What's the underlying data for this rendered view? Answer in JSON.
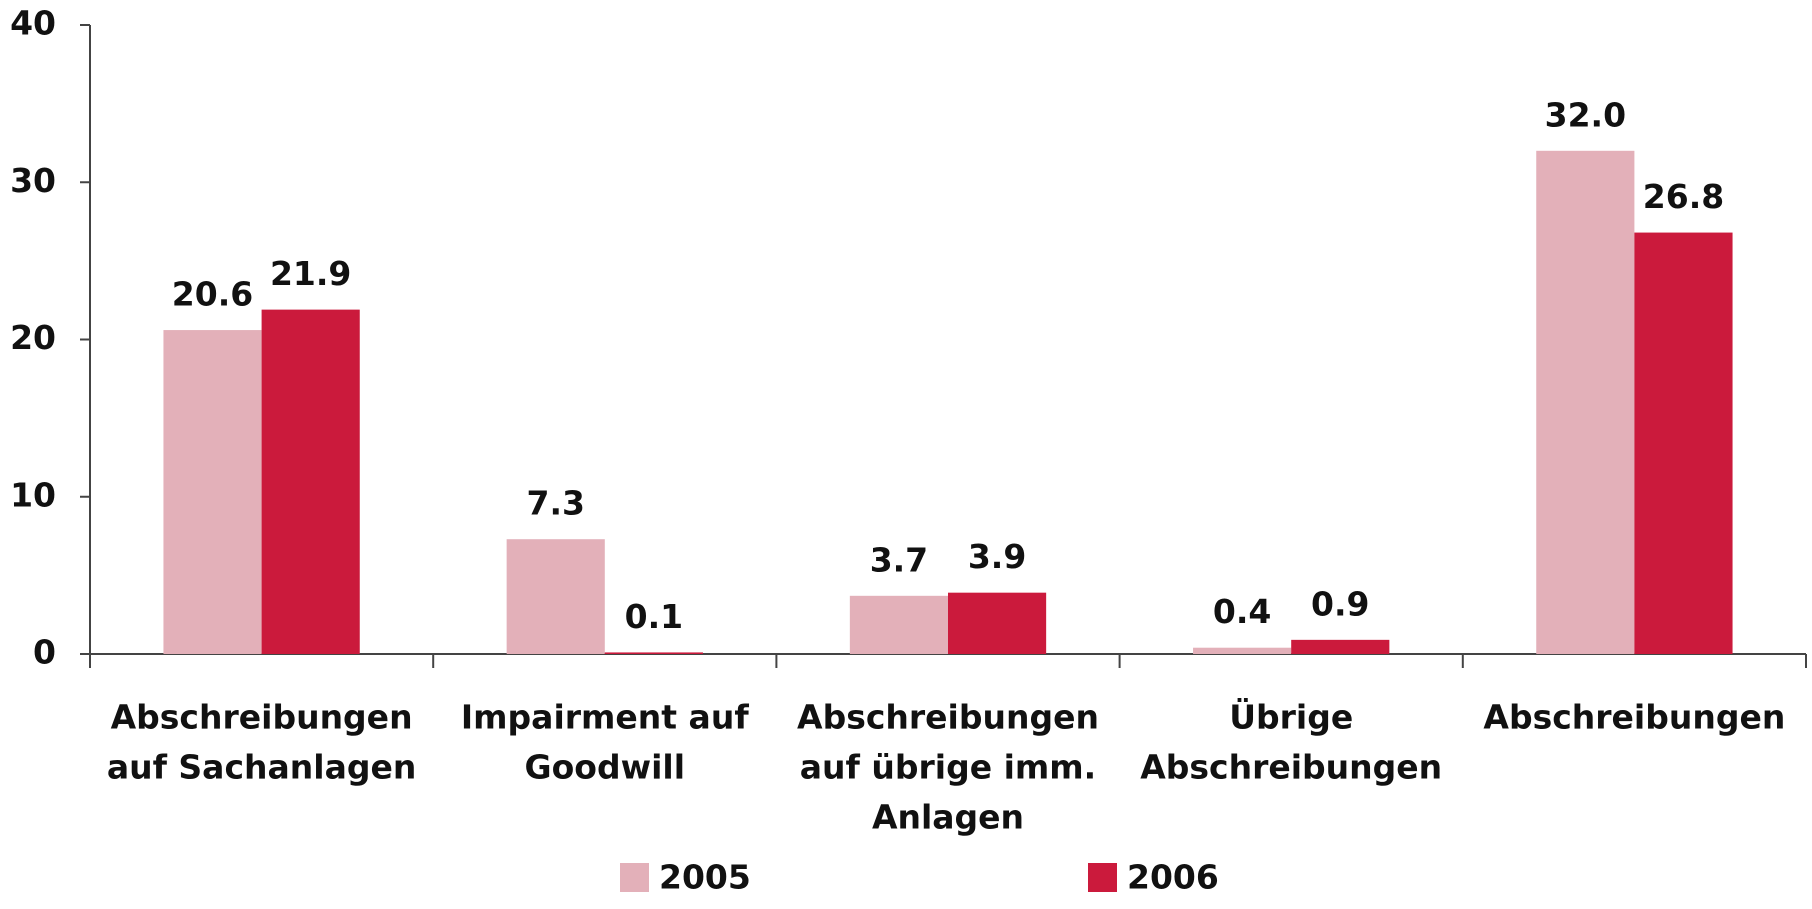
{
  "chart_data": {
    "type": "bar",
    "categories": [
      [
        "Abschreibungen",
        "auf Sachanlagen"
      ],
      [
        "Impairment auf",
        "Goodwill"
      ],
      [
        "Abschreibungen",
        "auf übrige imm.",
        "Anlagen"
      ],
      [
        "Übrige",
        "Abschreibungen"
      ],
      [
        "Abschreibungen"
      ]
    ],
    "series": [
      {
        "name": "2005",
        "color": "#e3b0b9",
        "values": [
          20.6,
          7.3,
          3.7,
          0.4,
          32.0
        ],
        "value_labels": [
          "20.6",
          "7.3",
          "3.7",
          "0.4",
          "32.0"
        ]
      },
      {
        "name": "2006",
        "color": "#cb1a3c",
        "values": [
          21.9,
          0.1,
          3.9,
          0.9,
          26.8
        ],
        "value_labels": [
          "21.9",
          "0.1",
          "3.9",
          "0.9",
          "26.8"
        ]
      }
    ],
    "ylim": [
      0,
      40
    ],
    "yticks": [
      0,
      10,
      20,
      30,
      40
    ],
    "grid": false,
    "legend": "bottom"
  }
}
